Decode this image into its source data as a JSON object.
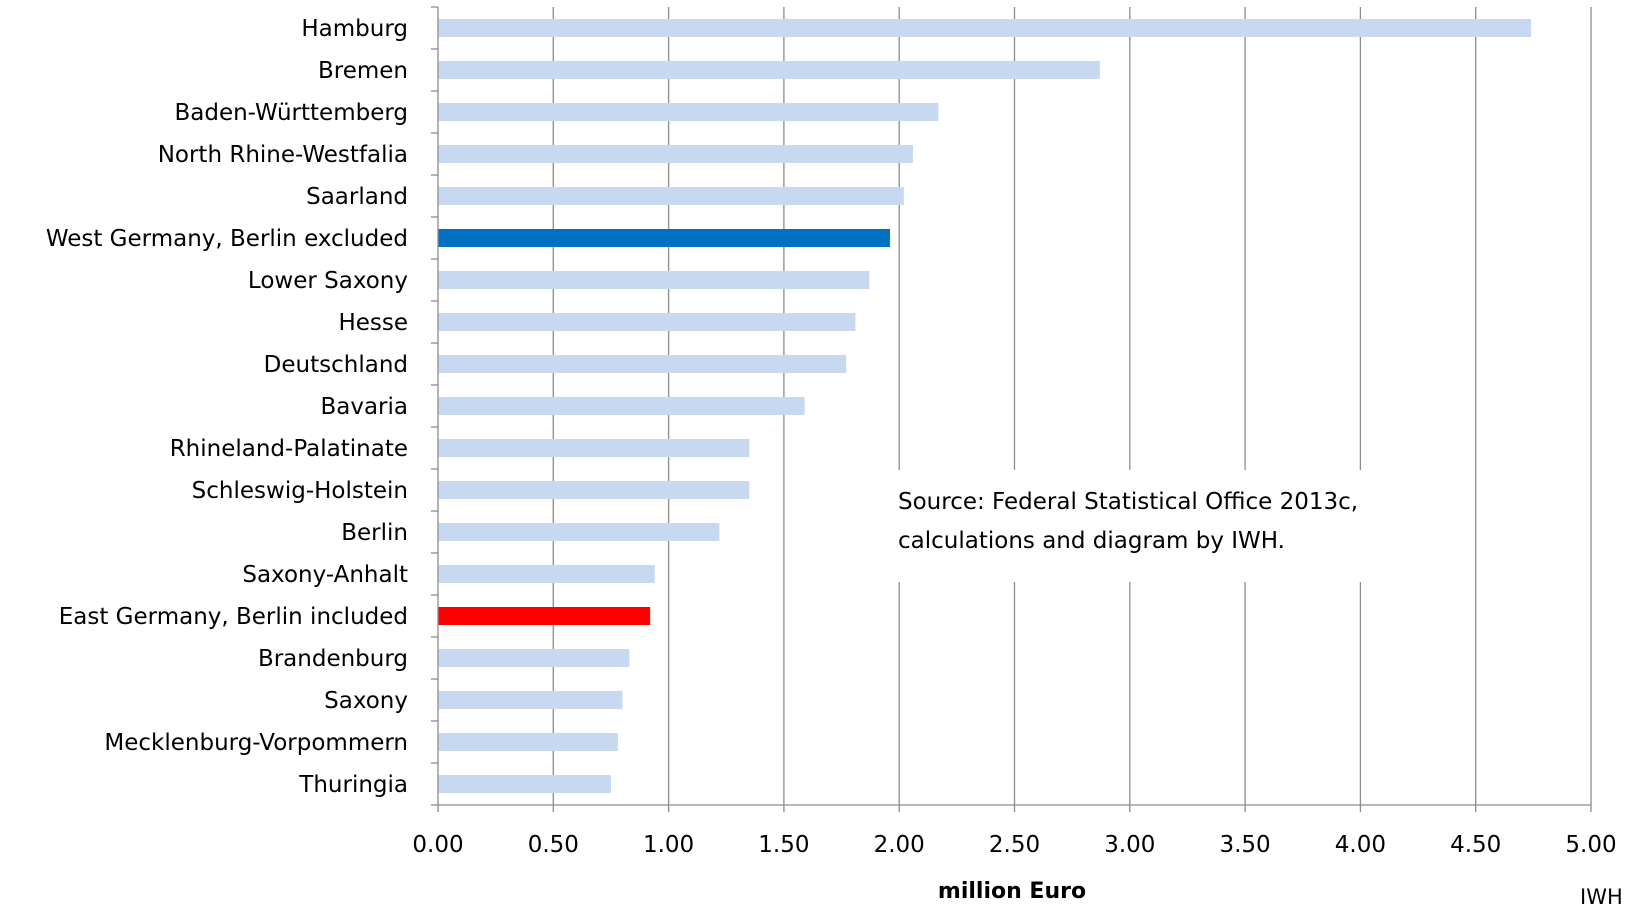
{
  "chart_data": {
    "type": "bar",
    "orientation": "horizontal",
    "categories": [
      "Hamburg",
      "Bremen",
      "Baden-Württemberg",
      "North Rhine-Westfalia",
      "Saarland",
      "West Germany, Berlin excluded",
      "Lower Saxony",
      "Hesse",
      "Deutschland",
      "Bavaria",
      "Rhineland-Palatinate",
      "Schleswig-Holstein",
      "Berlin",
      "Saxony-Anhalt",
      "East Germany, Berlin included",
      "Brandenburg",
      "Saxony",
      "Mecklenburg-Vorpommern",
      "Thuringia"
    ],
    "values": [
      4.74,
      2.87,
      2.17,
      2.06,
      2.02,
      1.96,
      1.87,
      1.81,
      1.77,
      1.59,
      1.35,
      1.35,
      1.22,
      0.94,
      0.92,
      0.83,
      0.8,
      0.78,
      0.75
    ],
    "bar_colors": [
      "#c6d9f1",
      "#c6d9f1",
      "#c6d9f1",
      "#c6d9f1",
      "#c6d9f1",
      "#0070c0",
      "#c6d9f1",
      "#c6d9f1",
      "#c6d9f1",
      "#c6d9f1",
      "#c6d9f1",
      "#c6d9f1",
      "#c6d9f1",
      "#c6d9f1",
      "#ff0000",
      "#c6d9f1",
      "#c6d9f1",
      "#c6d9f1",
      "#c6d9f1"
    ],
    "x_ticks": [
      "0.00",
      "0.50",
      "1.00",
      "1.50",
      "2.00",
      "2.50",
      "3.00",
      "3.50",
      "4.00",
      "4.50",
      "5.00"
    ],
    "xlim": [
      0,
      5
    ],
    "xlabel": "million Euro",
    "ylabel": "",
    "title": "",
    "grid": "vertical",
    "legend": "none",
    "annotation": {
      "line1": "Source: Federal Statistical  Office 2013c,",
      "line2": "calculations and diagram by IWH."
    },
    "corner_text": "IWH"
  }
}
